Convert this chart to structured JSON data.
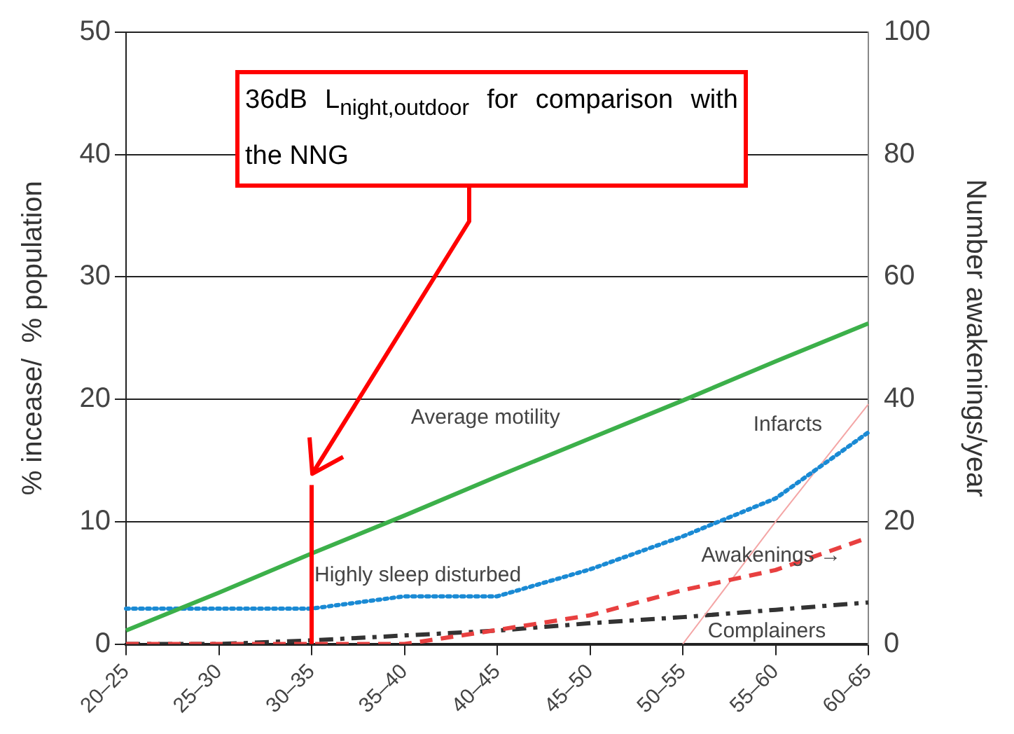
{
  "chart_data": {
    "type": "line",
    "ylabel": "% incease/  % population",
    "y2label": "Number awakenings/year",
    "categories": [
      "20–25",
      "25–30",
      "30–35",
      "35–40",
      "40–45",
      "45–50",
      "50–55",
      "55–60",
      "60–65"
    ],
    "ylim": [
      0,
      50
    ],
    "yticks": [
      0,
      10,
      20,
      30,
      40,
      50
    ],
    "y2lim": [
      0,
      100
    ],
    "y2ticks": [
      0,
      20,
      40,
      60,
      80,
      100
    ],
    "grid": "y",
    "legend": false,
    "series": [
      {
        "name": "Average motility",
        "color": "#3cb04a",
        "line_style": "solid",
        "values": [
          1.1,
          4.2,
          7.4,
          10.5,
          13.7,
          16.8,
          19.9,
          23.1,
          26.2
        ]
      },
      {
        "name": "Highly sleep disturbed",
        "color": "#1a8ad4",
        "line_style": "dotted",
        "values": [
          2.9,
          2.9,
          2.9,
          3.9,
          3.9,
          6.1,
          8.8,
          11.9,
          17.3
        ]
      },
      {
        "name": "Awakenings →",
        "color": "#e84040",
        "line_style": "dashed",
        "axis": "y2",
        "values": [
          0,
          0,
          0,
          0,
          2.3,
          4.7,
          8.8,
          12.1,
          17.4
        ]
      },
      {
        "name": "Infarcts",
        "color": "#f4a6a6",
        "line_style": "solid",
        "values": [
          null,
          null,
          null,
          null,
          null,
          null,
          0,
          10,
          19.6
        ]
      },
      {
        "name": "Complainers",
        "color": "#333333",
        "line_style": "dashdot",
        "values": [
          0,
          0,
          0.3,
          0.7,
          1.1,
          1.7,
          2.2,
          2.8,
          3.4
        ]
      }
    ],
    "ref_lines": [
      {
        "axis": "x",
        "value": "30–35",
        "label": "36dB L$_{night,outdoor}$ for comparison with the NNG",
        "color": "#ff0000"
      }
    ]
  }
}
